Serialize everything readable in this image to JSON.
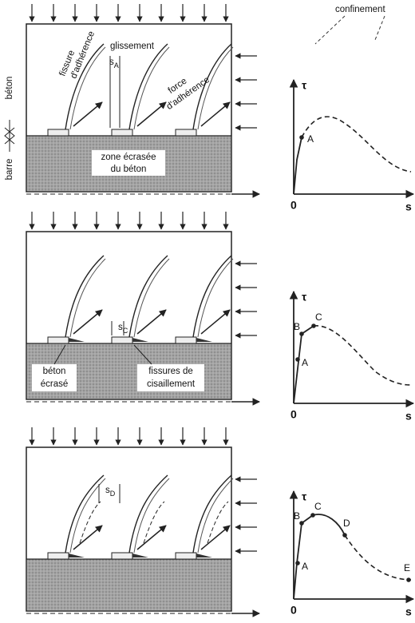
{
  "panels": [
    {
      "confinement": "confinement",
      "concrete_label": "béton",
      "bar_label": "barre",
      "bond_crack": [
        "fissure",
        "d'adhérence"
      ],
      "slip": "glissement",
      "slip_symbol": {
        "base": "s",
        "sub": "A"
      },
      "bond_force": [
        "force",
        "d'adhérence"
      ],
      "crushed_zone": [
        "zone écrasée",
        "du béton"
      ],
      "graph": {
        "y_axis": "τ",
        "x_axis": "s",
        "origin": "0",
        "points": [
          "A"
        ]
      }
    },
    {
      "slip_symbol": {
        "base": "s",
        "sub": "C"
      },
      "crushed_concrete": [
        "béton",
        "écrasé"
      ],
      "shear_cracks": [
        "fissures de",
        "cisaillement"
      ],
      "graph": {
        "y_axis": "τ",
        "x_axis": "s",
        "origin": "0",
        "points": [
          "B",
          "C",
          "A"
        ]
      }
    },
    {
      "slip_symbol": {
        "base": "s",
        "sub": "D"
      },
      "graph": {
        "y_axis": "τ",
        "x_axis": "s",
        "origin": "0",
        "points": [
          "B",
          "C",
          "D",
          "A",
          "E"
        ]
      }
    }
  ]
}
